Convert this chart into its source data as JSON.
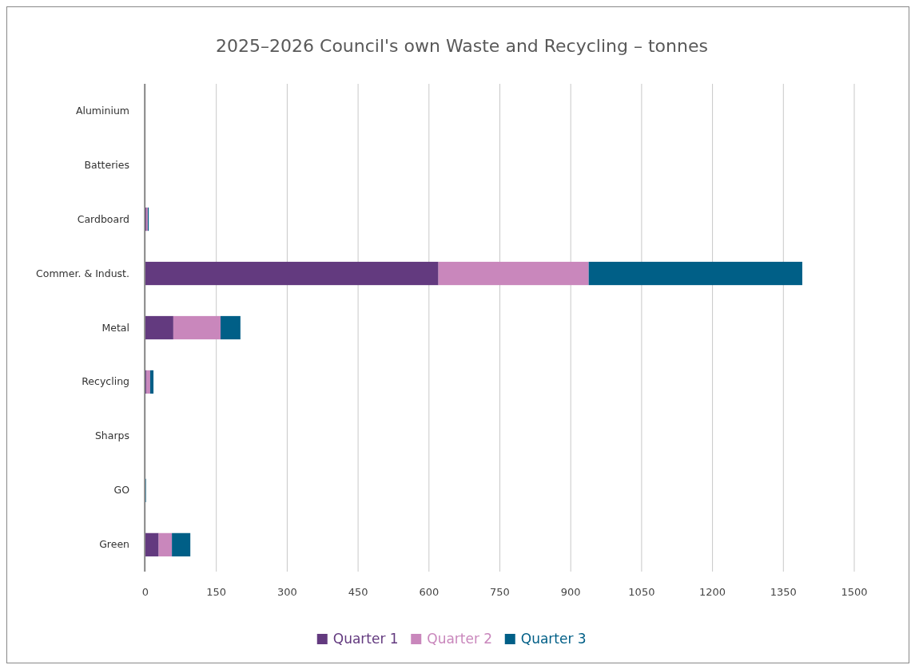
{
  "chart_data": {
    "type": "bar",
    "orientation": "horizontal",
    "stacked": true,
    "title": "2025–2026 Council's own Waste and Recycling – tonnes",
    "categories": [
      "Aluminium",
      "Batteries",
      "Cardboard",
      "Commer. & Indust.",
      "Metal",
      "Recycling",
      "Sharps",
      "GO",
      "Green"
    ],
    "series": [
      {
        "name": "Quarter 1",
        "color": "#633a7f",
        "values": [
          0,
          0,
          2,
          620,
          59,
          2,
          0,
          0,
          28
        ]
      },
      {
        "name": "Quarter 2",
        "color": "#c987bc",
        "values": [
          0,
          0,
          3,
          318,
          100,
          8,
          0,
          0,
          28
        ]
      },
      {
        "name": "Quarter 3",
        "color": "#005f87",
        "values": [
          0,
          0,
          2,
          452,
          42,
          7,
          0,
          1,
          39
        ]
      }
    ],
    "xlim": [
      0,
      1500
    ],
    "xticks": [
      0,
      150,
      300,
      450,
      600,
      750,
      900,
      1050,
      1200,
      1350,
      1500
    ],
    "grid": "x",
    "legend": "bottom"
  }
}
